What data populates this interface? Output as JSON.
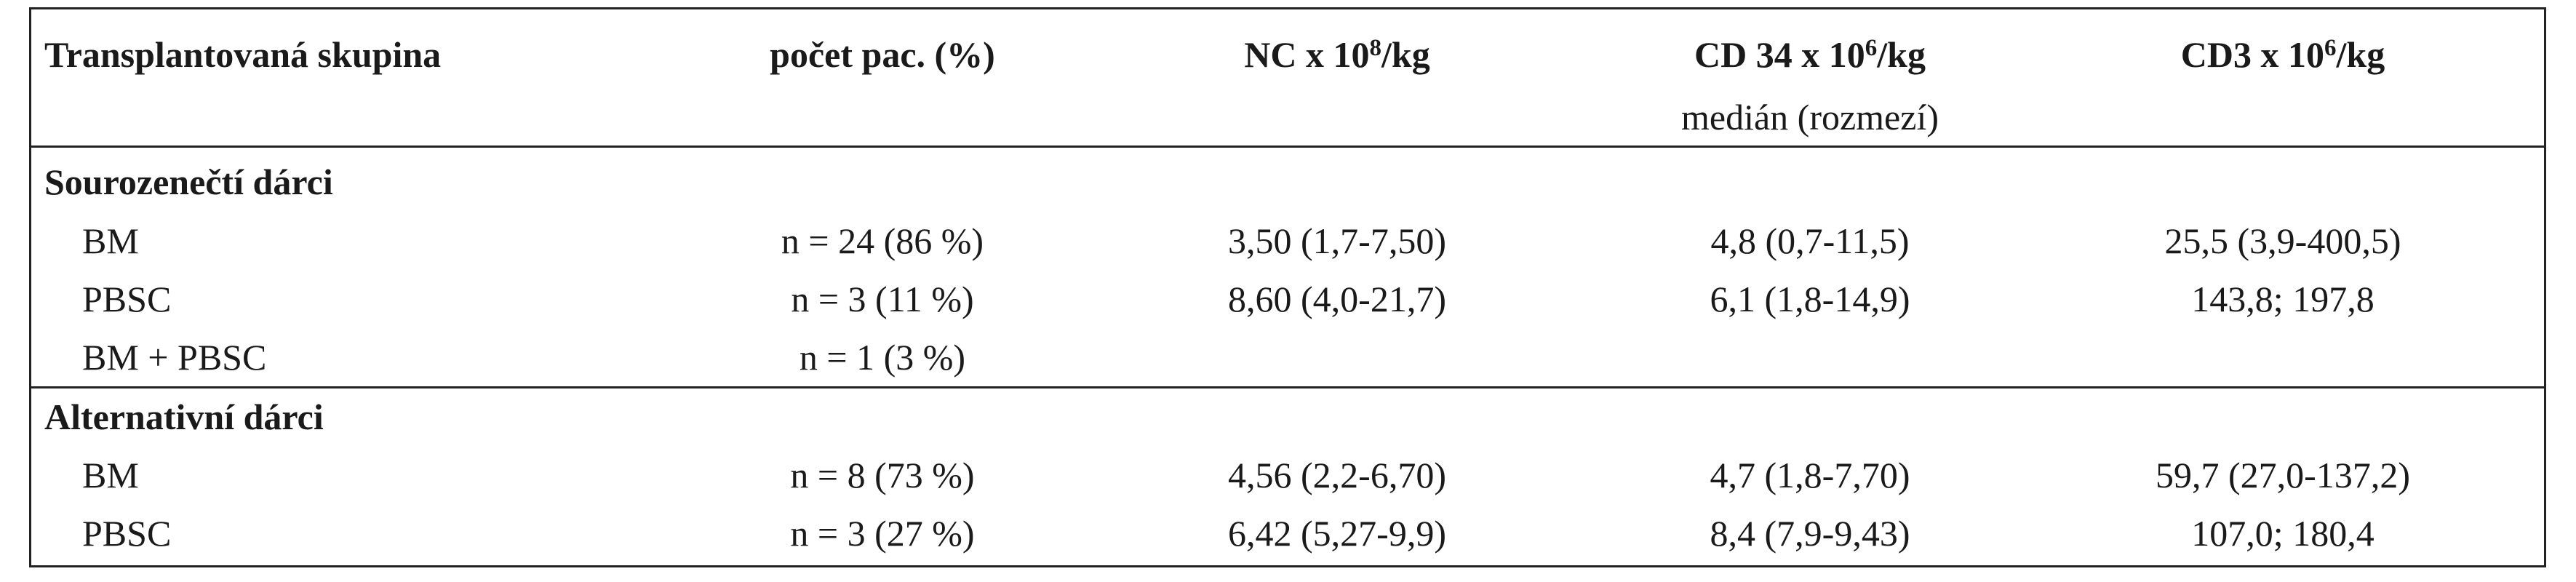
{
  "header": {
    "col0": "Transplantovaná skupina",
    "col1": "počet pac. (%)",
    "col2": {
      "pre": "NC x 10",
      "sup": "8",
      "post": "/kg"
    },
    "col3": {
      "pre": "CD 34 x 10",
      "sup": "6",
      "post": "/kg"
    },
    "col4": {
      "pre": "CD3 x 10",
      "sup": "6",
      "post": "/kg"
    },
    "subtitle": "medián (rozmezí)"
  },
  "groups": [
    {
      "title": "Sourozenečtí dárci",
      "rows": [
        {
          "type": "BM",
          "count": "n = 24 (86 %)",
          "nc": "3,50 (1,7-7,50)",
          "cd34": "4,8 (0,7-11,5)",
          "cd3": "25,5 (3,9-400,5)"
        },
        {
          "type": "PBSC",
          "count": "n = 3 (11 %)",
          "nc": "8,60 (4,0-21,7)",
          "cd34": "6,1 (1,8-14,9)",
          "cd3": "143,8; 197,8"
        },
        {
          "type": "BM + PBSC",
          "count": "n = 1 (3 %)",
          "nc": "",
          "cd34": "",
          "cd3": ""
        }
      ]
    },
    {
      "title": "Alternativní dárci",
      "rows": [
        {
          "type": "BM",
          "count": "n = 8 (73 %)",
          "nc": "4,56 (2,2-6,70)",
          "cd34": "4,7 (1,8-7,70)",
          "cd3": "59,7 (27,0-137,2)"
        },
        {
          "type": "PBSC",
          "count": "n = 3 (27 %)",
          "nc": "6,42 (5,27-9,9)",
          "cd34": "8,4 (7,9-9,43)",
          "cd3": "107,0; 180,4"
        }
      ]
    }
  ]
}
